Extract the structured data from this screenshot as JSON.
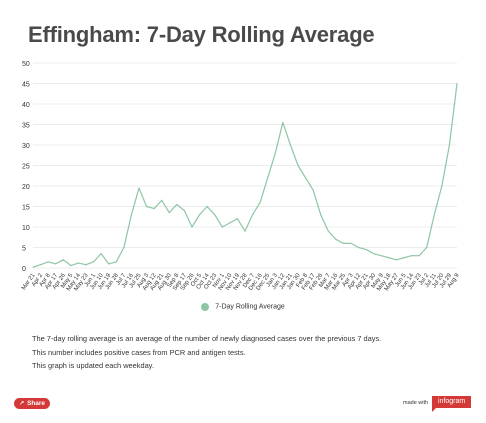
{
  "title": "Effingham: 7-Day Rolling Average",
  "chart_data": {
    "type": "line",
    "y_ticks": [
      0,
      5,
      10,
      15,
      20,
      25,
      30,
      35,
      40,
      45,
      50
    ],
    "ylim": [
      0,
      50
    ],
    "grid": true,
    "legend_position": "bottom",
    "x_tick_labels": [
      "Mar 21",
      "Apr 2",
      "Apr 8",
      "Apr 17",
      "Apr 26",
      "May 5",
      "May 14",
      "May 23",
      "Jun 1",
      "Jun 10",
      "Jun 19",
      "Jun 28",
      "Jul 7",
      "Jul 16",
      "Jul 25",
      "Aug 3",
      "Aug 12",
      "Aug 21",
      "Aug 30",
      "Sep 8",
      "Sep 17",
      "Sep 26",
      "Oct 5",
      "Oct 14",
      "Oct 23",
      "Nov 1",
      "Nov 10",
      "Nov 19",
      "Nov 28",
      "Dec 7",
      "Dec 16",
      "Dec 25",
      "Jan 3",
      "Jan 12",
      "Jan 21",
      "Jan 30",
      "Feb 8",
      "Feb 17",
      "Feb 26",
      "Mar 7",
      "Mar 16",
      "Mar 25",
      "Apr 3",
      "Apr 12",
      "Apr 21",
      "Apr 30",
      "May 9",
      "May 18",
      "May 27",
      "Jun 5",
      "Jun 14",
      "Jun 23",
      "Jul 2",
      "Jul 11",
      "Jul 20",
      "Jul 29",
      "Aug 9"
    ],
    "series": [
      {
        "name": "7-Day Rolling Average",
        "color": "#8ec5a4",
        "x": [
          "Mar 21",
          "Apr 2",
          "Apr 8",
          "Apr 17",
          "Apr 26",
          "May 5",
          "May 14",
          "May 23",
          "Jun 1",
          "Jun 10",
          "Jun 19",
          "Jun 28",
          "Jul 7",
          "Jul 16",
          "Jul 25",
          "Aug 3",
          "Aug 12",
          "Aug 21",
          "Aug 30",
          "Sep 8",
          "Sep 17",
          "Sep 26",
          "Oct 5",
          "Oct 14",
          "Oct 23",
          "Nov 1",
          "Nov 10",
          "Nov 19",
          "Nov 28",
          "Dec 7",
          "Dec 16",
          "Dec 25",
          "Jan 3",
          "Jan 12",
          "Jan 21",
          "Jan 30",
          "Feb 8",
          "Feb 17",
          "Feb 26",
          "Mar 7",
          "Mar 16",
          "Mar 25",
          "Apr 3",
          "Apr 12",
          "Apr 21",
          "Apr 30",
          "May 9",
          "May 18",
          "May 27",
          "Jun 5",
          "Jun 14",
          "Jun 23",
          "Jul 2",
          "Jul 11",
          "Jul 20",
          "Jul 29",
          "Aug 9"
        ],
        "values": [
          0.2,
          0.8,
          1.5,
          1.0,
          2.0,
          0.6,
          1.2,
          0.8,
          1.5,
          3.5,
          1.0,
          1.5,
          5.0,
          13.0,
          19.5,
          15.0,
          14.5,
          16.5,
          13.5,
          15.5,
          14.0,
          10.0,
          13.0,
          15.0,
          13.0,
          10.0,
          11.0,
          12.0,
          9.0,
          13.0,
          16.0,
          22.0,
          28.0,
          35.5,
          30.0,
          25.0,
          22.0,
          19.0,
          13.0,
          9.0,
          7.0,
          6.0,
          6.0,
          5.0,
          4.5,
          3.5,
          3.0,
          2.5,
          2.0,
          2.5,
          3.0,
          3.0,
          5.0,
          13.0,
          20.0,
          30.0,
          45.0
        ]
      }
    ]
  },
  "notes": [
    "The 7-day rolling average is an average of the number of newly diagnosed cases over the previous 7 days.",
    "This number includes positive cases from PCR and antigen tests.",
    "This graph is updated each weekday."
  ],
  "footer": {
    "share_label": "Share",
    "made_with": "made with",
    "brand": "infogram",
    "accent": "#d33a37"
  }
}
